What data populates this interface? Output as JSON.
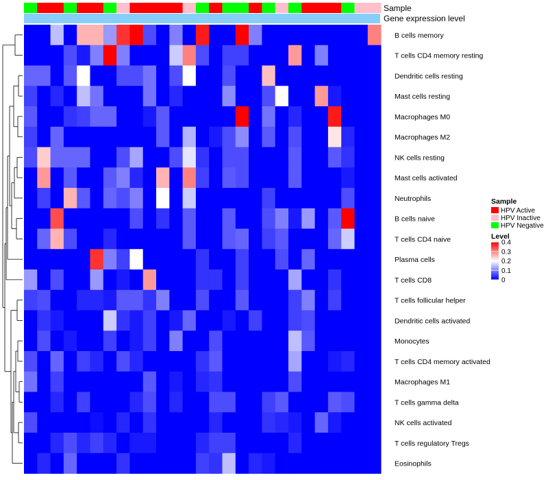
{
  "chart_data": {
    "type": "heatmap",
    "title": "",
    "annotation_labels": {
      "sample": "Sample",
      "expression": "Gene expression level"
    },
    "n_columns": 27,
    "column_sample_groups": [
      "HPV Negative",
      "HPV Active",
      "HPV Active",
      "HPV Negative",
      "HPV Active",
      "HPV Active",
      "HPV Negative",
      "HPV Inactive",
      "HPV Active",
      "HPV Active",
      "HPV Active",
      "HPV Active",
      "HPV Inactive",
      "HPV Negative",
      "HPV Active",
      "HPV Negative",
      "HPV Negative",
      "HPV Active",
      "HPV Negative",
      "HPV Inactive",
      "HPV Negative",
      "HPV Active",
      "HPV Active",
      "HPV Active",
      "HPV Negative",
      "HPV Inactive",
      "HPV Inactive"
    ],
    "rows": [
      {
        "name": "B cells memory",
        "values": [
          0,
          0,
          0.15,
          0,
          0.26,
          0.26,
          0.12,
          0.36,
          0.4,
          0.06,
          0,
          0.1,
          0,
          0.38,
          0,
          0,
          0.4,
          0.1,
          0,
          0,
          0,
          0,
          0,
          0,
          0,
          0,
          0.3
        ]
      },
      {
        "name": "T cells CD4 memory resting",
        "values": [
          0,
          0,
          0,
          0.06,
          0.02,
          0.1,
          0.4,
          0.1,
          0,
          0,
          0,
          0.16,
          0.3,
          0.06,
          0,
          0.05,
          0.05,
          0,
          0,
          0,
          0.28,
          0,
          0.1,
          0,
          0,
          0,
          0
        ]
      },
      {
        "name": "Dendritic cells resting",
        "values": [
          0.08,
          0.08,
          0,
          0.07,
          0.2,
          0,
          0,
          0.06,
          0.06,
          0.09,
          0,
          0.06,
          0.2,
          0,
          0,
          0.06,
          0,
          0,
          0.25,
          0,
          0,
          0,
          0,
          0,
          0,
          0,
          0
        ]
      },
      {
        "name": "Mast cells resting",
        "values": [
          0.05,
          0,
          0.03,
          0,
          0.15,
          0.09,
          0,
          0,
          0,
          0.09,
          0,
          0.03,
          0,
          0,
          0,
          0.11,
          0,
          0,
          0.06,
          0.2,
          0,
          0,
          0.28,
          0.02,
          0,
          0,
          0
        ]
      },
      {
        "name": "Macrophages M0",
        "values": [
          0.07,
          0,
          0,
          0.04,
          0.05,
          0.08,
          0.08,
          0,
          0,
          0.02,
          0.07,
          0,
          0,
          0,
          0,
          0,
          0.4,
          0,
          0.09,
          0,
          0.03,
          0,
          0,
          0.38,
          0,
          0,
          0
        ]
      },
      {
        "name": "Macrophages M2",
        "values": [
          0.05,
          0,
          0.08,
          0,
          0,
          0,
          0,
          0,
          0,
          0,
          0.07,
          0,
          0.14,
          0,
          0.02,
          0.06,
          0.11,
          0,
          0.07,
          0,
          0.06,
          0,
          0,
          0.22,
          0.03,
          0,
          0
        ]
      },
      {
        "name": "NK cells resting",
        "values": [
          0.06,
          0.24,
          0.08,
          0.08,
          0.08,
          0,
          0,
          0.06,
          0.13,
          0,
          0,
          0.06,
          0.18,
          0.04,
          0,
          0.06,
          0.06,
          0,
          0,
          0,
          0.07,
          0,
          0,
          0.07,
          0.04,
          0,
          0
        ]
      },
      {
        "name": "Mast cells activated",
        "values": [
          0,
          0.28,
          0,
          0.07,
          0,
          0,
          0.07,
          0.1,
          0.03,
          0,
          0.26,
          0,
          0.3,
          0.05,
          0,
          0.07,
          0.06,
          0,
          0,
          0,
          0.07,
          0,
          0,
          0,
          0.02,
          0,
          0
        ]
      },
      {
        "name": "Neutrophils",
        "values": [
          0,
          0.05,
          0,
          0.26,
          0.07,
          0,
          0.08,
          0.06,
          0.1,
          0,
          0.2,
          0,
          0.16,
          0,
          0,
          0,
          0,
          0,
          0.05,
          0,
          0,
          0,
          0,
          0,
          0.06,
          0,
          0
        ]
      },
      {
        "name": "B cells naive",
        "values": [
          0,
          0,
          0.34,
          0,
          0,
          0,
          0,
          0,
          0.06,
          0,
          0.04,
          0,
          0.07,
          0,
          0,
          0.07,
          0,
          0,
          0.06,
          0.1,
          0.02,
          0.12,
          0,
          0.07,
          0.4,
          0,
          0
        ]
      },
      {
        "name": "T cells CD4 naive",
        "values": [
          0,
          0.08,
          0.26,
          0.06,
          0,
          0,
          0.03,
          0,
          0,
          0,
          0,
          0,
          0.07,
          0,
          0,
          0.07,
          0.08,
          0,
          0.05,
          0.07,
          0,
          0,
          0,
          0.08,
          0.16,
          0,
          0
        ]
      },
      {
        "name": "Plasma cells",
        "values": [
          0,
          0,
          0,
          0,
          0,
          0.36,
          0.1,
          0.05,
          0.2,
          0,
          0,
          0,
          0,
          0.04,
          0,
          0,
          0.05,
          0,
          0,
          0.06,
          0,
          0.08,
          0,
          0,
          0,
          0,
          0
        ]
      },
      {
        "name": "T cells CD8",
        "values": [
          0.12,
          0,
          0.06,
          0,
          0,
          0.12,
          0,
          0.02,
          0,
          0.28,
          0,
          0,
          0,
          0.04,
          0.04,
          0,
          0.05,
          0,
          0,
          0,
          0.13,
          0,
          0,
          0.04,
          0,
          0,
          0
        ]
      },
      {
        "name": "T cells follicular helper",
        "values": [
          0.05,
          0.06,
          0,
          0,
          0.03,
          0.03,
          0.02,
          0.07,
          0.07,
          0.04,
          0.1,
          0,
          0,
          0.06,
          0,
          0,
          0.07,
          0,
          0,
          0,
          0.05,
          0.1,
          0,
          0.05,
          0,
          0,
          0
        ]
      },
      {
        "name": "Dendritic cells activated",
        "values": [
          0,
          0.04,
          0.02,
          0,
          0,
          0,
          0.16,
          0.04,
          0.02,
          0.05,
          0,
          0.02,
          0.08,
          0,
          0,
          0.02,
          0,
          0.05,
          0,
          0,
          0.05,
          0.06,
          0,
          0,
          0,
          0,
          0
        ]
      },
      {
        "name": "Monocytes",
        "values": [
          0,
          0.06,
          0,
          0.02,
          0,
          0,
          0.05,
          0,
          0.02,
          0.05,
          0,
          0.1,
          0,
          0,
          0.06,
          0,
          0,
          0,
          0,
          0,
          0.15,
          0.07,
          0,
          0,
          0,
          0,
          0
        ]
      },
      {
        "name": "T cells CD4 memory activated",
        "values": [
          0.06,
          0,
          0.08,
          0,
          0.05,
          0.03,
          0,
          0.06,
          0.03,
          0,
          0,
          0,
          0,
          0.04,
          0.07,
          0,
          0,
          0,
          0,
          0,
          0.13,
          0,
          0,
          0.02,
          0.03,
          0,
          0
        ]
      },
      {
        "name": "Macrophages M1",
        "values": [
          0.09,
          0,
          0.05,
          0,
          0,
          0,
          0,
          0,
          0,
          0.07,
          0,
          0.02,
          0,
          0.03,
          0.04,
          0,
          0,
          0,
          0,
          0,
          0.06,
          0,
          0,
          0,
          0,
          0,
          0
        ]
      },
      {
        "name": "T cells gamma delta",
        "values": [
          0,
          0,
          0.03,
          0,
          0.05,
          0,
          0,
          0,
          0.03,
          0.06,
          0,
          0.03,
          0,
          0,
          0.06,
          0.06,
          0,
          0,
          0.05,
          0.07,
          0,
          0,
          0,
          0.07,
          0.06,
          0,
          0
        ]
      },
      {
        "name": "NK cells activated",
        "values": [
          0.06,
          0,
          0,
          0,
          0,
          0.01,
          0,
          0.03,
          0,
          0.04,
          0,
          0,
          0,
          0,
          0.03,
          0,
          0,
          0,
          0.04,
          0.03,
          0.02,
          0,
          0.08,
          0.02,
          0,
          0,
          0
        ]
      },
      {
        "name": "T cells regulatory  Tregs",
        "values": [
          0,
          0,
          0.03,
          0.06,
          0.03,
          0.05,
          0.03,
          0,
          0.02,
          0.02,
          0,
          0,
          0,
          0.03,
          0.05,
          0.05,
          0,
          0,
          0,
          0,
          0.03,
          0,
          0,
          0,
          0,
          0,
          0
        ]
      },
      {
        "name": "Eosinophils",
        "values": [
          0,
          0.03,
          0,
          0.08,
          0,
          0,
          0,
          0.04,
          0,
          0,
          0,
          0,
          0,
          0.05,
          0.04,
          0.15,
          0,
          0.03,
          0.02,
          0,
          0,
          0,
          0,
          0,
          0,
          0,
          0
        ]
      }
    ],
    "legend": {
      "sample_title": "Sample",
      "sample_items": [
        {
          "label": "HPV Active",
          "color": "#ff0000"
        },
        {
          "label": "HPV Inactive",
          "color": "#ffc0cb"
        },
        {
          "label": "HPV Negative",
          "color": "#00ff00"
        }
      ],
      "level_title": "Level",
      "level_ticks": [
        "0.4",
        "0.3",
        "0.2",
        "0.1",
        "0"
      ],
      "level_range": [
        0,
        0.4
      ]
    },
    "colors": {
      "low": "#0000ff",
      "mid": "#ffffff",
      "high": "#ff0000",
      "expression_bar": "#87cefa"
    }
  }
}
